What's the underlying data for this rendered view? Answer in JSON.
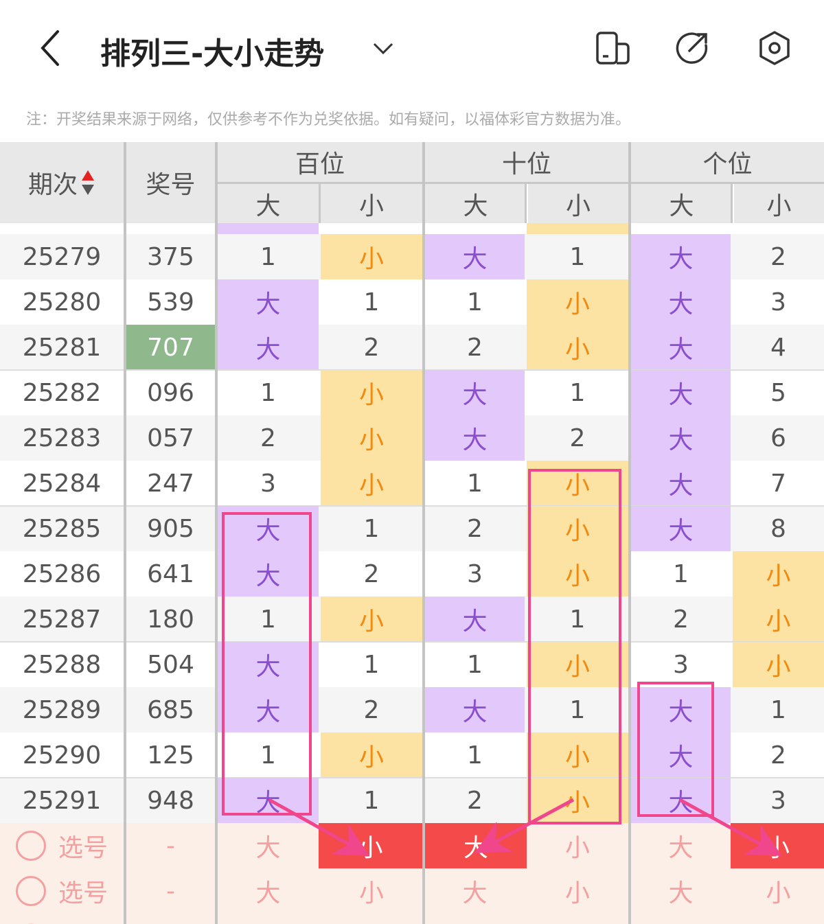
{
  "header": {
    "title": "排列三-大小走势",
    "icons": [
      "back-arrow-icon",
      "chevron-down-icon",
      "split-screen-icon",
      "share-icon",
      "settings-icon"
    ]
  },
  "note": "注：开奖结果来源于网络，仅供参考不作为兑奖依据。如有疑问，以福体彩官方数据为准。",
  "table": {
    "col_period": "期次",
    "col_number": "奖号",
    "groups": [
      "百位",
      "十位",
      "个位"
    ],
    "sub": [
      "大",
      "小"
    ],
    "rows": [
      {
        "period": "25279",
        "number": "375",
        "cells": [
          "1",
          "小",
          "大",
          "1",
          "大",
          "2"
        ]
      },
      {
        "period": "25280",
        "number": "539",
        "cells": [
          "大",
          "1",
          "1",
          "小",
          "大",
          "3"
        ]
      },
      {
        "period": "25281",
        "number": "707",
        "highlight": true,
        "cells": [
          "大",
          "2",
          "2",
          "小",
          "大",
          "4"
        ]
      },
      {
        "period": "25282",
        "number": "096",
        "cells": [
          "1",
          "小",
          "大",
          "1",
          "大",
          "5"
        ]
      },
      {
        "period": "25283",
        "number": "057",
        "cells": [
          "2",
          "小",
          "大",
          "2",
          "大",
          "6"
        ]
      },
      {
        "period": "25284",
        "number": "247",
        "cells": [
          "3",
          "小",
          "1",
          "小",
          "大",
          "7"
        ]
      },
      {
        "period": "25285",
        "number": "905",
        "cells": [
          "大",
          "1",
          "2",
          "小",
          "大",
          "8"
        ]
      },
      {
        "period": "25286",
        "number": "641",
        "cells": [
          "大",
          "2",
          "3",
          "小",
          "1",
          "小"
        ]
      },
      {
        "period": "25287",
        "number": "180",
        "cells": [
          "1",
          "小",
          "大",
          "1",
          "2",
          "小"
        ]
      },
      {
        "period": "25288",
        "number": "504",
        "cells": [
          "大",
          "1",
          "1",
          "小",
          "3",
          "小"
        ]
      },
      {
        "period": "25289",
        "number": "685",
        "cells": [
          "大",
          "2",
          "大",
          "1",
          "大",
          "1"
        ]
      },
      {
        "period": "25290",
        "number": "125",
        "cells": [
          "1",
          "小",
          "1",
          "小",
          "大",
          "2"
        ]
      },
      {
        "period": "25291",
        "number": "948",
        "cells": [
          "大",
          "1",
          "2",
          "小",
          "大",
          "3"
        ]
      }
    ],
    "pick_rows": [
      {
        "label": "选号",
        "number": "-",
        "cells": [
          "大",
          "小",
          "大",
          "小",
          "大",
          "小"
        ],
        "selected": [
          1,
          2,
          5
        ]
      },
      {
        "label": "选号",
        "number": "-",
        "cells": [
          "大",
          "小",
          "大",
          "小",
          "大",
          "小"
        ],
        "selected": []
      }
    ]
  },
  "colors": {
    "big": "#e3c8fb",
    "small": "#fde3a3",
    "selected": "#f54a4a",
    "annotation": "#f0468c",
    "highlight": "#8fb98c"
  }
}
